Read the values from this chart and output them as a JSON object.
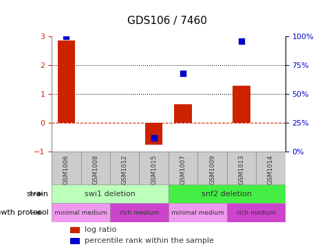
{
  "title": "GDS106 / 7460",
  "samples": [
    "GSM1006",
    "GSM1008",
    "GSM1012",
    "GSM1015",
    "GSM1007",
    "GSM1009",
    "GSM1013",
    "GSM1014"
  ],
  "log_ratio": [
    2.85,
    0.0,
    0.0,
    -0.75,
    0.65,
    0.0,
    1.3,
    0.0
  ],
  "percentile_rank": [
    100.0,
    null,
    null,
    12.0,
    68.0,
    null,
    96.0,
    null
  ],
  "ylim_left": [
    -1,
    3
  ],
  "ylim_right": [
    0,
    100
  ],
  "yticks_left": [
    -1,
    0,
    1,
    2,
    3
  ],
  "yticks_right": [
    0,
    25,
    50,
    75,
    100
  ],
  "hlines": [
    0,
    1,
    2
  ],
  "hline_styles": [
    "dashed",
    "dotted",
    "dotted"
  ],
  "hline_colors": [
    "#cc2200",
    "#000000",
    "#000000"
  ],
  "strain_groups": [
    {
      "label": "swi1 deletion",
      "start": 0,
      "end": 4,
      "color": "#bbffbb"
    },
    {
      "label": "snf2 deletion",
      "start": 4,
      "end": 8,
      "color": "#44ee44"
    }
  ],
  "growth_groups": [
    {
      "label": "minimal medium",
      "start": 0,
      "end": 2,
      "color": "#ee99ee"
    },
    {
      "label": "rich medium",
      "start": 2,
      "end": 4,
      "color": "#cc44cc"
    },
    {
      "label": "minimal medium",
      "start": 4,
      "end": 6,
      "color": "#ee99ee"
    },
    {
      "label": "rich medium",
      "start": 6,
      "end": 8,
      "color": "#cc44cc"
    }
  ],
  "bar_color": "#cc2200",
  "dot_color": "#0000cc",
  "bar_width": 0.6,
  "dot_size": 40,
  "left_label_color": "#cc2200",
  "right_label_color": "#0000cc",
  "legend_items": [
    {
      "label": "log ratio",
      "color": "#cc2200"
    },
    {
      "label": "percentile rank within the sample",
      "color": "#0000cc"
    }
  ],
  "sample_bg_color": "#cccccc",
  "sample_text_color": "#333333"
}
